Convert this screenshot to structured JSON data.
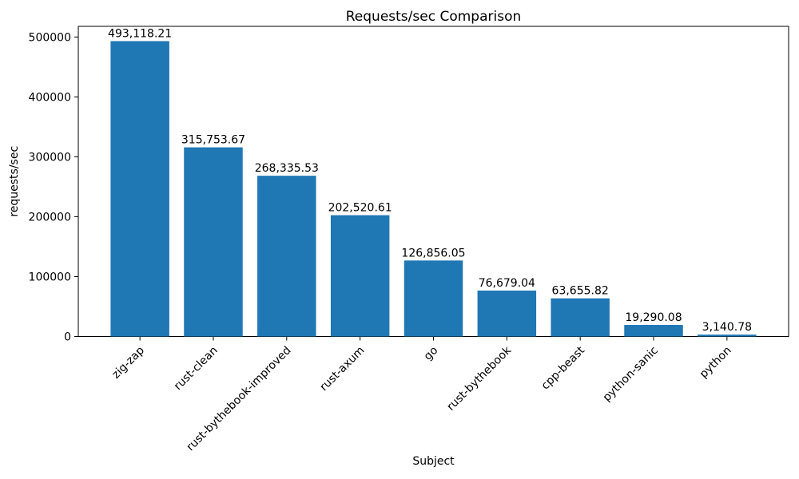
{
  "chart_data": {
    "type": "bar",
    "title": "Requests/sec Comparison",
    "xlabel": "Subject",
    "ylabel": "requests/sec",
    "categories": [
      "zig-zap",
      "rust-clean",
      "rust-bythebook-improved",
      "rust-axum",
      "go",
      "rust-bythebook",
      "cpp-beast",
      "python-sanic",
      "python"
    ],
    "values": [
      493118.21,
      315753.67,
      268335.53,
      202520.61,
      126856.05,
      76679.04,
      63655.82,
      19290.08,
      3140.78
    ],
    "value_labels": [
      "493,118.21",
      "315,753.67",
      "268,335.53",
      "202,520.61",
      "126,856.05",
      "76,679.04",
      "63,655.82",
      "19,290.08",
      "3,140.78"
    ],
    "yticks": [
      0,
      100000,
      200000,
      300000,
      400000,
      500000
    ],
    "ytick_labels": [
      "0",
      "100000",
      "200000",
      "300000",
      "400000",
      "500000"
    ],
    "ylim": [
      0,
      517774
    ],
    "bar_color": "#1f77b4",
    "grid": false,
    "legend_position": "none",
    "xtick_rotation": 45
  }
}
